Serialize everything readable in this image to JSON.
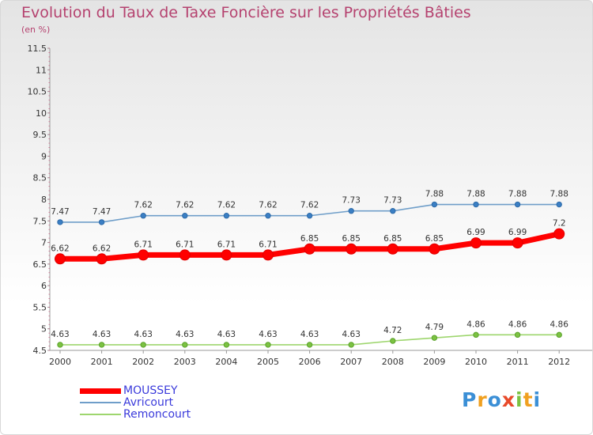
{
  "chart_data": {
    "type": "line",
    "title": "Evolution du Taux de Taxe Foncière sur les Propriétés Bâties",
    "unit_label": "(en %)",
    "x": [
      "2000",
      "2001",
      "2002",
      "2003",
      "2004",
      "2005",
      "2006",
      "2007",
      "2008",
      "2009",
      "2010",
      "2011",
      "2012"
    ],
    "ylim": [
      4.5,
      11.5
    ],
    "yticks": [
      "4.5",
      "5",
      "5.5",
      "6",
      "6.5",
      "7",
      "7.5",
      "8",
      "8.5",
      "9",
      "9.5",
      "10",
      "10.5",
      "11",
      "11.5"
    ],
    "grid": false,
    "legend_position": "bottom-left",
    "series": [
      {
        "name": "MOUSSEY",
        "color": "#ff0000",
        "values": [
          6.62,
          6.62,
          6.71,
          6.71,
          6.71,
          6.71,
          6.85,
          6.85,
          6.85,
          6.85,
          6.99,
          6.99,
          7.2
        ],
        "labels": [
          "6.62",
          "6.62",
          "6.71",
          "6.71",
          "6.71",
          "6.71",
          "6.85",
          "6.85",
          "6.85",
          "6.85",
          "6.99",
          "6.99",
          "7.2"
        ]
      },
      {
        "name": "Avricourt",
        "color": "#6f9ec9",
        "values": [
          7.47,
          7.47,
          7.62,
          7.62,
          7.62,
          7.62,
          7.62,
          7.73,
          7.73,
          7.88,
          7.88,
          7.88,
          7.88
        ],
        "labels": [
          "7.47",
          "7.47",
          "7.62",
          "7.62",
          "7.62",
          "7.62",
          "7.62",
          "7.73",
          "7.73",
          "7.88",
          "7.88",
          "7.88",
          "7.88"
        ]
      },
      {
        "name": "Remoncourt",
        "color": "#9ed66e",
        "values": [
          4.63,
          4.63,
          4.63,
          4.63,
          4.63,
          4.63,
          4.63,
          4.63,
          4.72,
          4.79,
          4.86,
          4.86,
          4.86
        ],
        "labels": [
          "4.63",
          "4.63",
          "4.63",
          "4.63",
          "4.63",
          "4.63",
          "4.63",
          "4.63",
          "4.72",
          "4.79",
          "4.86",
          "4.86",
          "4.86"
        ]
      }
    ]
  },
  "logo": {
    "text": "Proxiti",
    "colors": [
      "#3b8fd6",
      "#f0a020",
      "#3b8fd6",
      "#e84a2a",
      "#7cc242",
      "#f0a020",
      "#3b8fd6"
    ]
  }
}
